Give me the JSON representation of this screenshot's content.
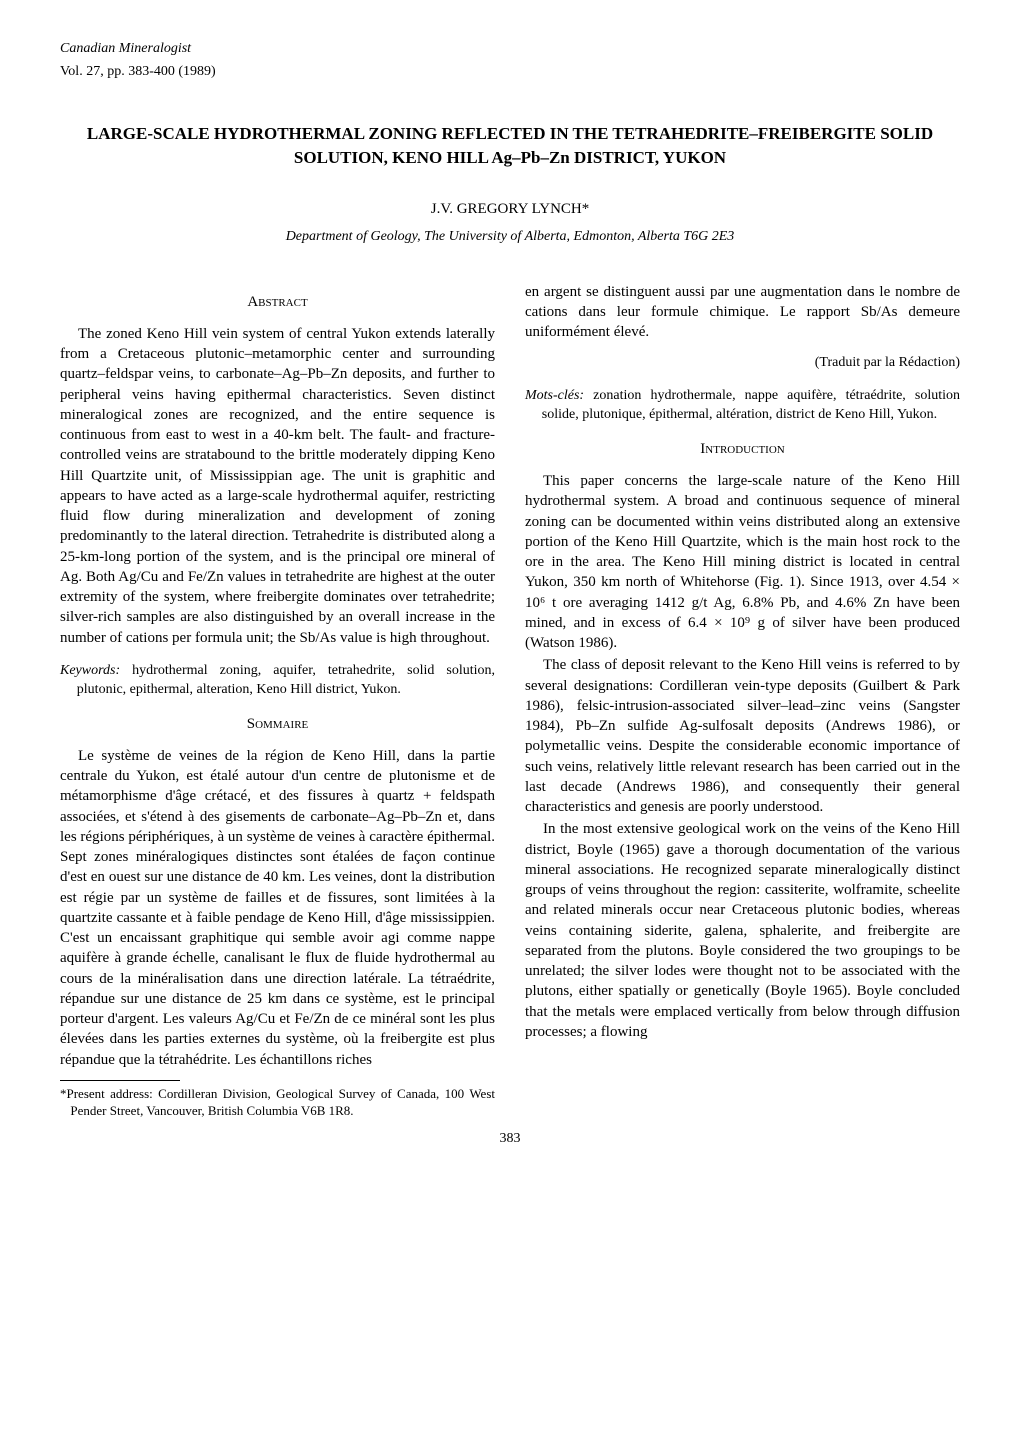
{
  "header": {
    "journal": "Canadian Mineralogist",
    "volume": "Vol. 27, pp. 383-400 (1989)"
  },
  "title": "LARGE-SCALE HYDROTHERMAL ZONING REFLECTED IN THE TETRAHEDRITE–FREIBERGITE SOLID SOLUTION, KENO HILL Ag–Pb–Zn DISTRICT, YUKON",
  "author": "J.V. GREGORY LYNCH*",
  "affiliation": "Department of Geology, The University of Alberta, Edmonton, Alberta T6G 2E3",
  "left_column": {
    "abstract_heading": "Abstract",
    "abstract_text": "The zoned Keno Hill vein system of central Yukon extends laterally from a Cretaceous plutonic–metamorphic center and surrounding quartz–feldspar veins, to carbonate–Ag–Pb–Zn deposits, and further to peripheral veins having epithermal characteristics. Seven distinct mineralogical zones are recognized, and the entire sequence is continuous from east to west in a 40-km belt. The fault- and fracture-controlled veins are stratabound to the brittle moderately dipping Keno Hill Quartzite unit, of Mississippian age. The unit is graphitic and appears to have acted as a large-scale hydrothermal aquifer, restricting fluid flow during mineralization and development of zoning predominantly to the lateral direction. Tetrahedrite is distributed along a 25-km-long portion of the system, and is the principal ore mineral of Ag. Both Ag/Cu and Fe/Zn values in tetrahedrite are highest at the outer extremity of the system, where freibergite dominates over tetrahedrite; silver-rich samples are also distinguished by an overall increase in the number of cations per formula unit; the Sb/As value is high throughout.",
    "keywords_label": "Keywords:",
    "keywords_text": " hydrothermal zoning, aquifer, tetrahedrite, solid solution, plutonic, epithermal, alteration, Keno Hill district, Yukon.",
    "sommaire_heading": "Sommaire",
    "sommaire_text": "Le système de veines de la région de Keno Hill, dans la partie centrale du Yukon, est étalé autour d'un centre de plutonisme et de métamorphisme d'âge crétacé, et des fissures à quartz + feldspath associées, et s'étend à des gisements de carbonate–Ag–Pb–Zn et, dans les régions périphériques, à un système de veines à caractère épithermal. Sept zones minéralogiques distinctes sont étalées de façon continue d'est en ouest sur une distance de 40 km. Les veines, dont la distribution est régie par un système de failles et de fissures, sont limitées à la quartzite cassante et à faible pendage de Keno Hill, d'âge mississippien. C'est un encaissant graphitique qui semble avoir agi comme nappe aquifère à grande échelle, canalisant le flux de fluide hydrothermal au cours de la minéralisation dans une direction latérale. La tétraédrite, répandue sur une distance de 25 km dans ce système, est le principal porteur d'argent. Les valeurs Ag/Cu et Fe/Zn de ce minéral sont les plus élevées dans les parties externes du système, où la freibergite est plus répandue que la tétrahédrite. Les échantillons riches",
    "footnote": "*Present address: Cordilleran Division, Geological Survey of Canada, 100 West Pender Street, Vancouver, British Columbia V6B 1R8."
  },
  "right_column": {
    "sommaire_cont": "en argent se distinguent aussi par une augmentation dans le nombre de cations dans leur formule chimique. Le rapport Sb/As demeure uniformément élevé.",
    "translation_credit": "(Traduit par la Rédaction)",
    "motscles_label": "Mots-clés:",
    "motscles_text": " zonation hydrothermale, nappe aquifère, tétraédrite, solution solide, plutonique, épithermal, altération, district de Keno Hill, Yukon.",
    "intro_heading": "Introduction",
    "intro_p1": "This paper concerns the large-scale nature of the Keno Hill hydrothermal system. A broad and continuous sequence of mineral zoning can be documented within veins distributed along an extensive portion of the Keno Hill Quartzite, which is the main host rock to the ore in the area. The Keno Hill mining district is located in central Yukon, 350 km north of Whitehorse (Fig. 1). Since 1913, over 4.54 × 10⁶ t ore averaging 1412 g/t Ag, 6.8% Pb, and 4.6% Zn have been mined, and in excess of 6.4 × 10⁹ g of silver have been produced (Watson 1986).",
    "intro_p2": "The class of deposit relevant to the Keno Hill veins is referred to by several designations: Cordilleran vein-type deposits (Guilbert & Park 1986), felsic-intrusion-associated silver–lead–zinc veins (Sangster 1984), Pb–Zn sulfide Ag-sulfosalt deposits (Andrews 1986), or polymetallic veins. Despite the considerable economic importance of such veins, relatively little relevant research has been carried out in the last decade (Andrews 1986), and consequently their general characteristics and genesis are poorly understood.",
    "intro_p3": "In the most extensive geological work on the veins of the Keno Hill district, Boyle (1965) gave a thorough documentation of the various mineral associations. He recognized separate mineralogically distinct groups of veins throughout the region: cassiterite, wolframite, scheelite and related minerals occur near Cretaceous plutonic bodies, whereas veins containing siderite, galena, sphalerite, and freibergite are separated from the plutons. Boyle considered the two groupings to be unrelated; the silver lodes were thought not to be associated with the plutons, either spatially or genetically (Boyle 1965). Boyle concluded that the metals were emplaced vertically from below through diffusion processes; a flowing"
  },
  "page_number": "383"
}
